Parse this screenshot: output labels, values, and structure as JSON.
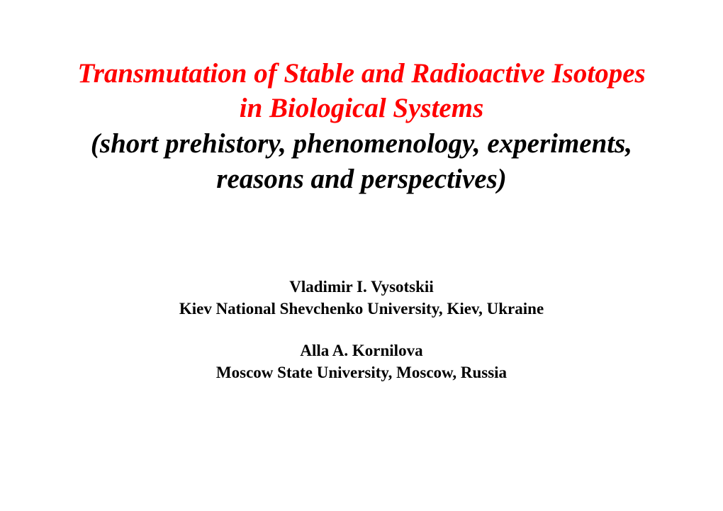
{
  "title": {
    "line1_red": "Transmutation of Stable and Radioactive Isotopes in Biological Systems",
    "line2_black": "(short prehistory, phenomenology, experiments, reasons and perspectives)"
  },
  "authors": [
    {
      "name": "Vladimir I. Vysotskii",
      "affiliation": "Kiev National Shevchenko University, Kiev, Ukraine"
    },
    {
      "name": "Alla A. Kornilova",
      "affiliation": "Moscow State University, Moscow, Russia"
    }
  ],
  "style": {
    "title_red_color": "#ff0000",
    "title_black_color": "#000000",
    "body_text_color": "#000000",
    "background_color": "#ffffff",
    "title_fontsize": 39,
    "author_fontsize": 23,
    "font_family": "Times New Roman"
  }
}
